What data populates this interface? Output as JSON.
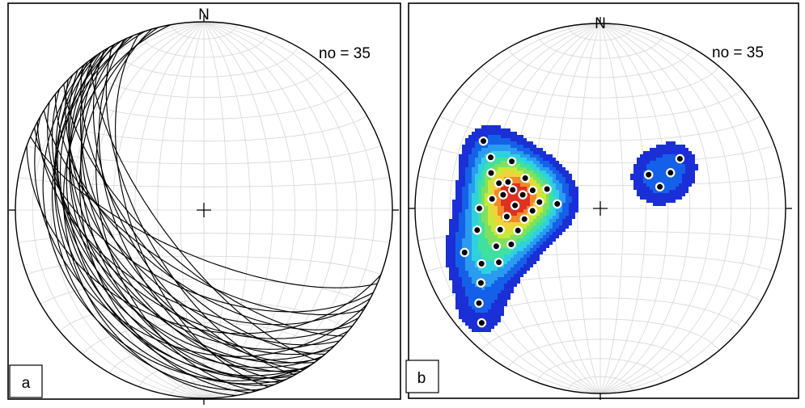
{
  "panels": [
    {
      "id": "a",
      "letter": "a",
      "north_label": "N",
      "count_label": "no = 35",
      "plot_type": "great-circles",
      "projection": "stereonet",
      "planes": [
        {
          "dip_dir": 206,
          "dip": 55
        },
        {
          "dip_dir": 208,
          "dip": 48
        },
        {
          "dip_dir": 212,
          "dip": 62
        },
        {
          "dip_dir": 215,
          "dip": 44
        },
        {
          "dip_dir": 218,
          "dip": 58
        },
        {
          "dip_dir": 220,
          "dip": 40
        },
        {
          "dip_dir": 222,
          "dip": 66
        },
        {
          "dip_dir": 224,
          "dip": 52
        },
        {
          "dip_dir": 226,
          "dip": 36
        },
        {
          "dip_dir": 228,
          "dip": 47
        },
        {
          "dip_dir": 230,
          "dip": 60
        },
        {
          "dip_dir": 231,
          "dip": 33
        },
        {
          "dip_dir": 232,
          "dip": 42
        },
        {
          "dip_dir": 233,
          "dip": 71
        },
        {
          "dip_dir": 234,
          "dip": 50
        },
        {
          "dip_dir": 236,
          "dip": 28
        },
        {
          "dip_dir": 237,
          "dip": 38
        },
        {
          "dip_dir": 238,
          "dip": 56
        },
        {
          "dip_dir": 239,
          "dip": 45
        },
        {
          "dip_dir": 240,
          "dip": 30
        },
        {
          "dip_dir": 241,
          "dip": 63
        },
        {
          "dip_dir": 242,
          "dip": 35
        },
        {
          "dip_dir": 244,
          "dip": 25
        },
        {
          "dip_dir": 245,
          "dip": 52
        },
        {
          "dip_dir": 246,
          "dip": 40
        },
        {
          "dip_dir": 248,
          "dip": 31
        },
        {
          "dip_dir": 250,
          "dip": 58
        },
        {
          "dip_dir": 252,
          "dip": 22
        },
        {
          "dip_dir": 254,
          "dip": 45
        },
        {
          "dip_dir": 200,
          "dip": 38
        },
        {
          "dip_dir": 203,
          "dip": 70
        },
        {
          "dip_dir": 210,
          "dip": 28
        },
        {
          "dip_dir": 256,
          "dip": 36
        },
        {
          "dip_dir": 260,
          "dip": 27
        },
        {
          "dip_dir": 235,
          "dip": 20
        }
      ]
    },
    {
      "id": "b",
      "letter": "b",
      "north_label": "N",
      "count_label": "no = 35",
      "plot_type": "pole-density-contours",
      "projection": "stereonet",
      "contour_colors": [
        "#1b2fd6",
        "#1560e8",
        "#2a9bf0",
        "#2fd0e0",
        "#40e0a0",
        "#7fe060",
        "#c8e83a",
        "#f0d23a",
        "#f08a2a",
        "#e03020"
      ],
      "poles": [
        {
          "trend": 295,
          "plunge": 35
        },
        {
          "trend": 288,
          "plunge": 38
        },
        {
          "trend": 284,
          "plunge": 43
        },
        {
          "trend": 282,
          "plunge": 50
        },
        {
          "trend": 278,
          "plunge": 46
        },
        {
          "trend": 275,
          "plunge": 41
        },
        {
          "trend": 280,
          "plunge": 55
        },
        {
          "trend": 272,
          "plunge": 52
        },
        {
          "trend": 268,
          "plunge": 60
        },
        {
          "trend": 276,
          "plunge": 63
        },
        {
          "trend": 285,
          "plunge": 59
        },
        {
          "trend": 290,
          "plunge": 65
        },
        {
          "trend": 265,
          "plunge": 48
        },
        {
          "trend": 262,
          "plunge": 56
        },
        {
          "trend": 258,
          "plunge": 44
        },
        {
          "trend": 255,
          "plunge": 52
        },
        {
          "trend": 250,
          "plunge": 40
        },
        {
          "trend": 248,
          "plunge": 47
        },
        {
          "trend": 242,
          "plunge": 38
        },
        {
          "trend": 245,
          "plunge": 30
        },
        {
          "trend": 238,
          "plunge": 25
        },
        {
          "trend": 232,
          "plunge": 18
        },
        {
          "trend": 226,
          "plunge": 12
        },
        {
          "trend": 300,
          "plunge": 28
        },
        {
          "trend": 298,
          "plunge": 45
        },
        {
          "trend": 292,
          "plunge": 54
        },
        {
          "trend": 270,
          "plunge": 35
        },
        {
          "trend": 260,
          "plunge": 33
        },
        {
          "trend": 252,
          "plunge": 24
        },
        {
          "trend": 276,
          "plunge": 71
        },
        {
          "trend": 286,
          "plunge": 47
        },
        {
          "trend": 58,
          "plunge": 48
        },
        {
          "trend": 63,
          "plunge": 55
        },
        {
          "trend": 70,
          "plunge": 62
        },
        {
          "trend": 55,
          "plunge": 64
        }
      ]
    }
  ]
}
